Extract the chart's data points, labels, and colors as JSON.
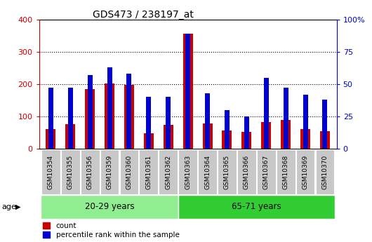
{
  "title": "GDS473 / 238197_at",
  "samples": [
    "GSM10354",
    "GSM10355",
    "GSM10356",
    "GSM10359",
    "GSM10360",
    "GSM10361",
    "GSM10362",
    "GSM10363",
    "GSM10364",
    "GSM10365",
    "GSM10366",
    "GSM10367",
    "GSM10368",
    "GSM10369",
    "GSM10370"
  ],
  "counts": [
    62,
    77,
    185,
    202,
    197,
    47,
    75,
    355,
    78,
    57,
    53,
    82,
    90,
    62,
    55
  ],
  "percentile_pct": [
    47,
    47,
    57,
    63,
    58,
    40,
    40,
    89,
    43,
    30,
    25,
    55,
    47,
    42,
    38
  ],
  "groups": [
    {
      "label": "20-29 years",
      "start": 0,
      "end": 7,
      "color": "#90EE90"
    },
    {
      "label": "65-71 years",
      "start": 7,
      "end": 15,
      "color": "#32CD32"
    }
  ],
  "age_label": "age",
  "ylim_left": [
    0,
    400
  ],
  "ylim_right": [
    0,
    100
  ],
  "yticks_left": [
    0,
    100,
    200,
    300,
    400
  ],
  "yticks_right": [
    0,
    25,
    50,
    75,
    100
  ],
  "count_color": "#CC0000",
  "percentile_color": "#0000CC",
  "plot_bg": "#FFFFFF",
  "grid_color": "#000000",
  "left_label_color": "#CC0000",
  "right_label_color": "#0000CC"
}
